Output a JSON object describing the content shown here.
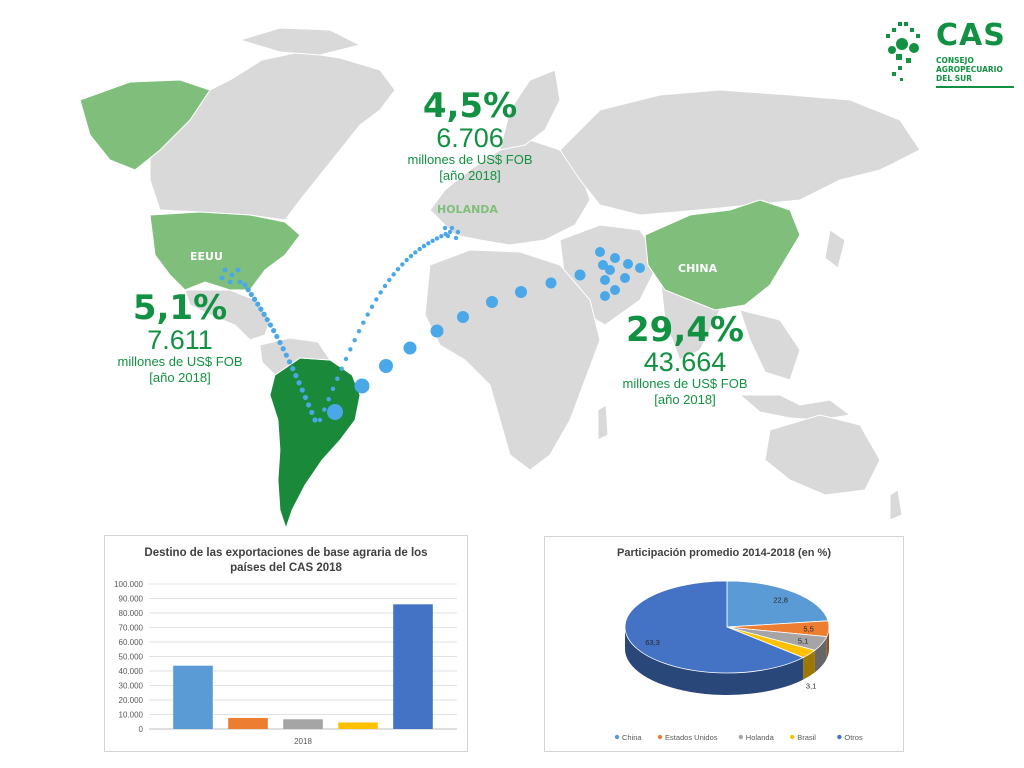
{
  "brand": {
    "name": "CAS",
    "subtitle_lines": [
      "CONSEJO",
      "AGROPECUARIO",
      "DEL SUR"
    ],
    "color": "#129142"
  },
  "map": {
    "land_color": "#d9d9d9",
    "highlight_color": "#7fbf7b",
    "cas_color": "#1a8a3a",
    "route_color": "#4aa8e8",
    "labels": {
      "usa": "EEUU",
      "netherlands": "HOLANDA",
      "china": "CHINA"
    }
  },
  "stats": {
    "netherlands": {
      "pct": "4,5%",
      "value": "6.706",
      "unit": "millones de US$ FOB",
      "year": "[año 2018]"
    },
    "usa": {
      "pct": "5,1%",
      "value": "7.611",
      "unit": "millones de US$ FOB",
      "year": "[año 2018]"
    },
    "china": {
      "pct": "29,4%",
      "value": "43.664",
      "unit": "millones de US$ FOB",
      "year": "[año 2018]"
    }
  },
  "chart_data": [
    {
      "type": "bar",
      "title": "Destino de las exportaciones de base agraria de los países del CAS 2018",
      "title_lines": [
        "Destino de las exportaciones de base agraria de los",
        "países del CAS 2018"
      ],
      "categories": [
        "2018"
      ],
      "series": [
        {
          "values": [
            43664
          ],
          "color": "#5b9bd5"
        },
        {
          "values": [
            7611
          ],
          "color": "#ed7d31"
        },
        {
          "values": [
            6706
          ],
          "color": "#a5a5a5"
        },
        {
          "values": [
            4500
          ],
          "color": "#ffc000"
        },
        {
          "values": [
            86000
          ],
          "color": "#4472c4"
        }
      ],
      "ylim": [
        0,
        100000
      ],
      "yticks": [
        "0",
        "10.000",
        "20.000",
        "30.000",
        "40.000",
        "50.000",
        "60.000",
        "70.000",
        "80.000",
        "90.000",
        "100.000"
      ],
      "grid": true
    },
    {
      "type": "pie",
      "title": "Participación promedio 2014-2018  (en %)",
      "slices": [
        {
          "label": "China",
          "value": 22.8,
          "display": "22,8",
          "color": "#5b9bd5"
        },
        {
          "label": "Estados Unidos",
          "value": 5.5,
          "display": "5,5",
          "color": "#ed7d31"
        },
        {
          "label": "Holanda",
          "value": 5.1,
          "display": "5,1",
          "color": "#a5a5a5"
        },
        {
          "label": "Brasil",
          "value": 3.1,
          "display": "3,1",
          "color": "#ffc000"
        },
        {
          "label": "Otros",
          "value": 63.3,
          "display": "63,3",
          "color": "#4472c4"
        }
      ],
      "legend": "bottom"
    }
  ]
}
